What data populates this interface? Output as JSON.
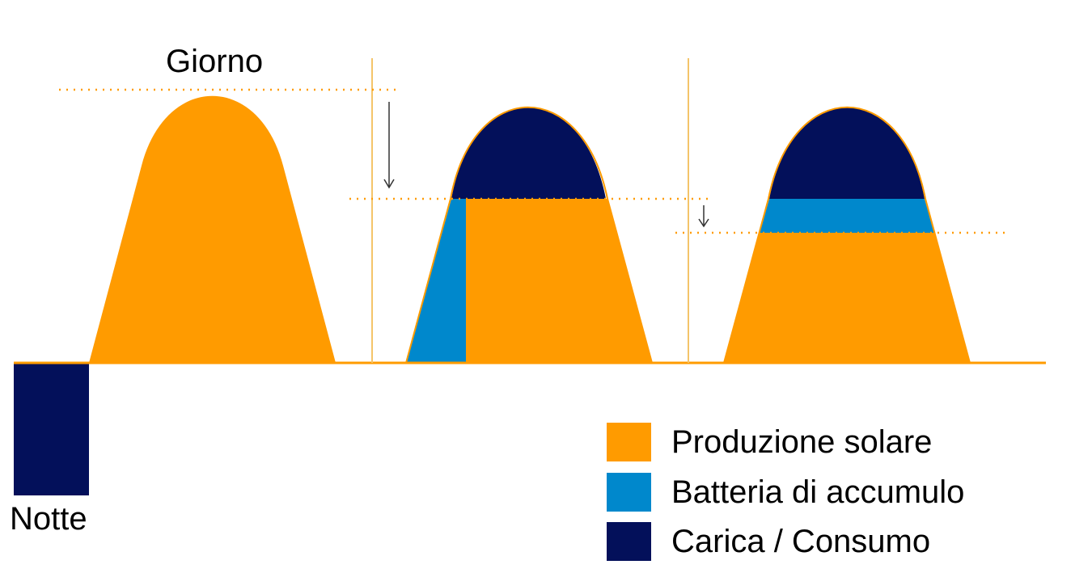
{
  "labels": {
    "day": "Giorno",
    "night": "Notte"
  },
  "colors": {
    "solar": "#FF9B00",
    "battery": "#0088CC",
    "load": "#03105A",
    "guide": "#F4C46A",
    "arrow": "#333333",
    "baseline": "#FF9B00"
  },
  "legend": [
    {
      "label": "Produzione solare",
      "color": "#FF9B00"
    },
    {
      "label": "Batteria di accumulo",
      "color": "#0088CC"
    },
    {
      "label": "Carica / Consumo",
      "color": "#03105A"
    }
  ]
}
